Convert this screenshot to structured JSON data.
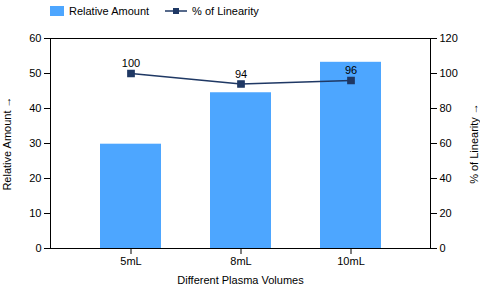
{
  "chart_data": {
    "type": "bar",
    "categories": [
      "5mL",
      "8mL",
      "10mL"
    ],
    "xlabel": "Different Plasma Volumes",
    "ylabel": "Relative Amount",
    "y2label": "% of Linearity",
    "series": [
      {
        "name": "Relative Amount",
        "type": "bar",
        "color": "#4DA6FF",
        "values": [
          29.8,
          44.5,
          53.2
        ]
      },
      {
        "name": "% of Linearity",
        "type": "line",
        "axis": "y2",
        "color": "#1F3864",
        "marker": "square",
        "data_labels": true,
        "values": [
          100,
          94,
          96
        ]
      }
    ],
    "ylim": [
      0,
      60
    ],
    "yticks": [
      0,
      10,
      20,
      30,
      40,
      50,
      60
    ],
    "y2lim": [
      0,
      120
    ],
    "y2ticks": [
      0,
      20,
      40,
      60,
      80,
      100,
      120
    ],
    "legend": "upper left",
    "grid": false
  }
}
